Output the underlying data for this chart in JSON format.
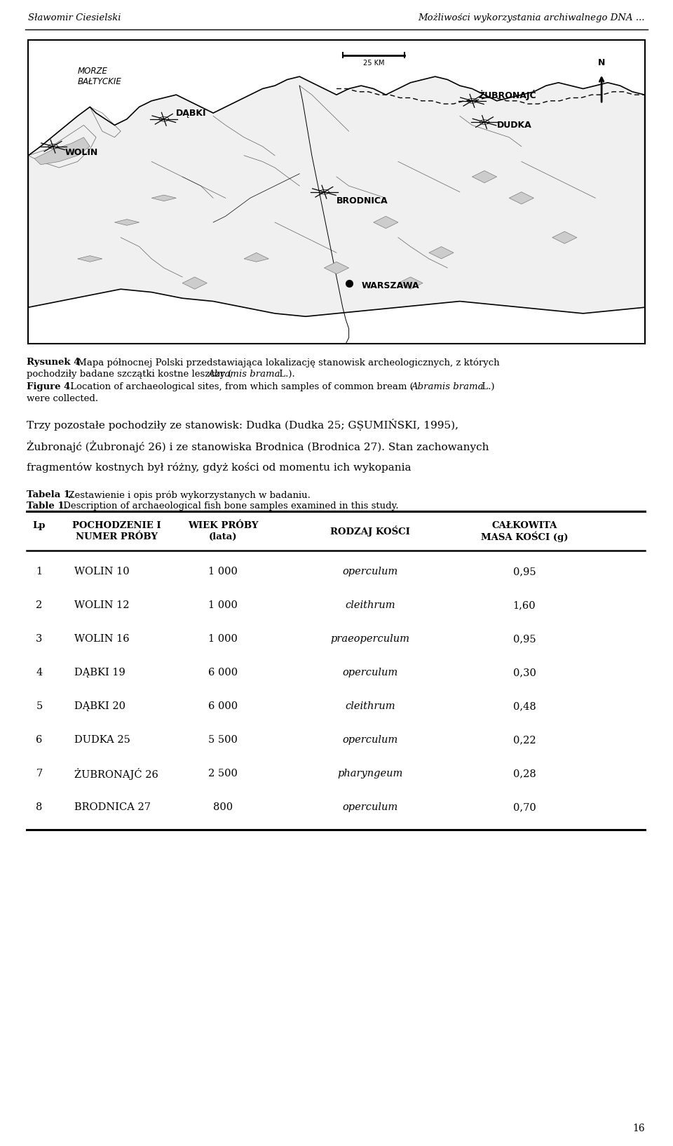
{
  "header_left": "Sławomir Ciesielski",
  "header_right": "Możliwości wykorzystania archiwalnego DNA ...",
  "page_number": "16",
  "table_caption_pl_bold": "Tabela 1.",
  "table_caption_pl_rest": " Zestawienie i opis prób wykorzystanych w badaniu.",
  "table_caption_en_bold": "Table 1.",
  "table_caption_en_rest": " Description of archaeological fish bone samples examined in this study.",
  "body_text_line1": "Trzy pozostałe pochodziły ze stanowisk: Dudka (Dudka 25; GṢUMIŃSKI, 1995),",
  "body_text_line2": "Żubronajć (Żubronajć 26) i ze stanowiska Brodnica (Brodnica 27). Stan zachowanych",
  "body_text_line3": "fragmentów kostnych był różny, gdyż kości od momentu ich wykopania",
  "table_data": [
    [
      "1",
      "WOLIN 10",
      "1 000",
      "operculum",
      "0,95"
    ],
    [
      "2",
      "WOLIN 12",
      "1 000",
      "cleithrum",
      "1,60"
    ],
    [
      "3",
      "WOLIN 16",
      "1 000",
      "praeoperculum",
      "0,95"
    ],
    [
      "4",
      "DĄBKI 19",
      "6 000",
      "operculum",
      "0,30"
    ],
    [
      "5",
      "DĄBKI 20",
      "6 000",
      "cleithrum",
      "0,48"
    ],
    [
      "6",
      "DUDKA 25",
      "5 500",
      "operculum",
      "0,22"
    ],
    [
      "7",
      "ŻUBRONAJĆ 26",
      "2 500",
      "pharyngeum",
      "0,28"
    ],
    [
      "8",
      "BRODNICA 27",
      "800",
      "operculum",
      "0,70"
    ]
  ],
  "background_color": "#ffffff"
}
